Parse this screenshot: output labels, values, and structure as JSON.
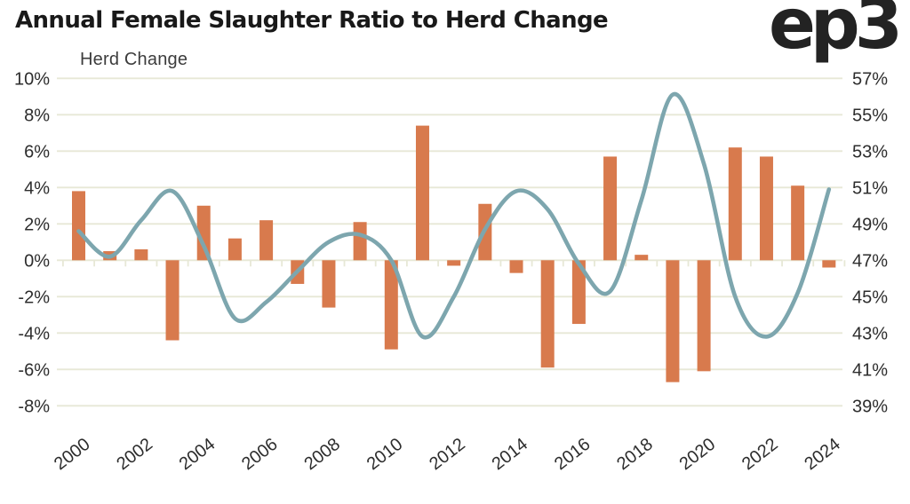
{
  "header": {
    "title": "Annual Female Slaughter Ratio to Herd Change",
    "logo": "ep3"
  },
  "chart_data": {
    "type": "bar",
    "title": "Annual Female Slaughter Ratio to Herd Change",
    "x": [
      2000,
      2001,
      2002,
      2003,
      2004,
      2005,
      2006,
      2007,
      2008,
      2009,
      2010,
      2011,
      2012,
      2013,
      2014,
      2015,
      2016,
      2017,
      2018,
      2019,
      2020,
      2021,
      2022,
      2023,
      2024
    ],
    "x_tick_labels": [
      "2000",
      "2002",
      "2004",
      "2006",
      "2008",
      "2010",
      "2012",
      "2014",
      "2016",
      "2018",
      "2020",
      "2022",
      "2024"
    ],
    "series": [
      {
        "name": "Herd Change",
        "type": "bar",
        "axis": "left",
        "color": "#D87A4D",
        "values": [
          3.8,
          0.5,
          0.6,
          -4.4,
          3.0,
          1.2,
          2.2,
          -1.3,
          -2.6,
          2.1,
          -4.9,
          7.4,
          -0.3,
          3.1,
          -0.7,
          -5.9,
          -3.5,
          5.7,
          0.3,
          -6.7,
          -6.1,
          6.2,
          5.7,
          4.1,
          -0.4
        ]
      },
      {
        "name": "Female Slaughter Ratio",
        "type": "line",
        "axis": "right",
        "color": "#7DA6AE",
        "values": [
          48.6,
          47.2,
          49.2,
          50.8,
          47.8,
          43.8,
          44.7,
          46.4,
          48.0,
          48.4,
          47.0,
          42.8,
          45.0,
          48.7,
          50.8,
          49.8,
          46.8,
          45.3,
          50.3,
          56.1,
          52.3,
          45.0,
          42.8,
          45.2,
          50.9
        ]
      }
    ],
    "left_axis": {
      "label": "Herd Change",
      "unit": "%",
      "max": 10,
      "min": -8,
      "step": 2,
      "tick_labels": [
        "10%",
        "8%",
        "6%",
        "4%",
        "2%",
        "0%",
        "-2%",
        "-4%",
        "-6%",
        "-8%"
      ]
    },
    "right_axis": {
      "unit": "%",
      "max": 57,
      "min": 39,
      "step": 2,
      "tick_labels": [
        "57%",
        "55%",
        "53%",
        "51%",
        "49%",
        "47%",
        "45%",
        "43%",
        "41%",
        "39%"
      ]
    },
    "grid": true,
    "legend": "none",
    "grid_color": "#E7E8D6",
    "text_color": "#2d2d2d"
  }
}
